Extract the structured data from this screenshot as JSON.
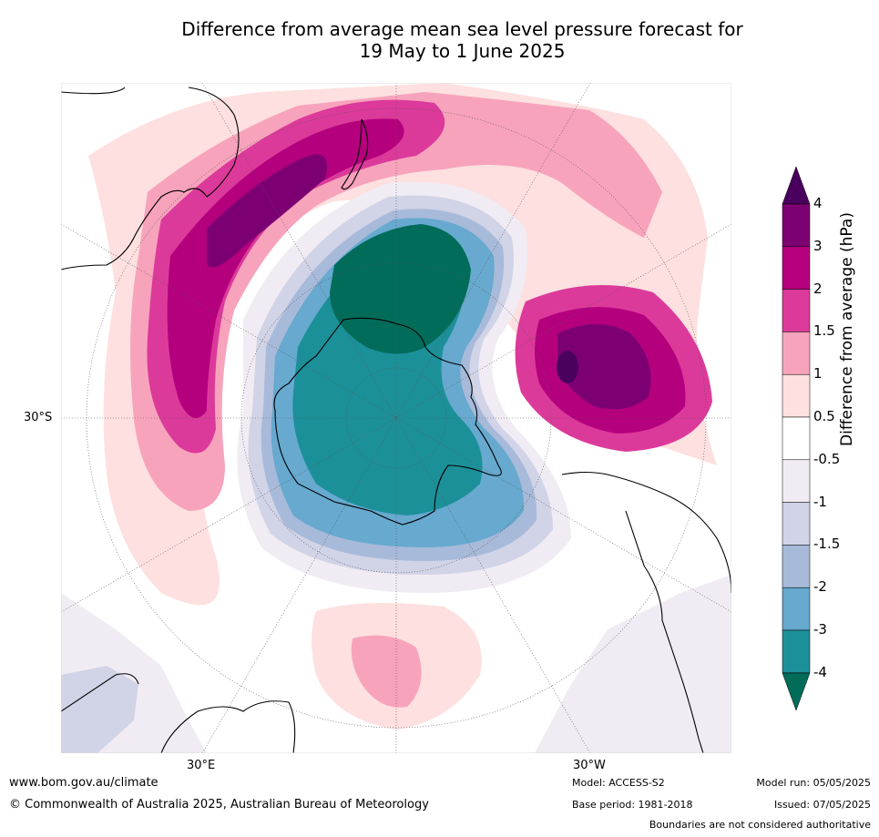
{
  "title": {
    "line1": "Difference from average mean sea level pressure forecast for",
    "line2": "19 May to 1 June 2025"
  },
  "axis_labels": {
    "lat": "30°S",
    "lon_east": "30°E",
    "lon_west": "30°W"
  },
  "colorbar": {
    "label": "Difference from average (hPa)",
    "ticks": [
      "4",
      "3",
      "2",
      "1.5",
      "1",
      "0.5",
      "-0.5",
      "-1",
      "-1.5",
      "-2",
      "-3",
      "-4"
    ],
    "colors": [
      "#4a005e",
      "#7d0073",
      "#b5007e",
      "#dc3a9a",
      "#f8a3bc",
      "#fde0df",
      "#ffffff",
      "#f1ecf3",
      "#d1d3e7",
      "#a8bad9",
      "#67a9cf",
      "#1c9099",
      "#016c59"
    ]
  },
  "footer": {
    "website": "www.bom.gov.au/climate",
    "copyright": "© Commonwealth of Australia 2025, Australian Bureau of Meteorology",
    "model": "Model: ACCESS-S2",
    "base_period": "Base period: 1981-2018",
    "model_run": "Model run: 05/05/2025",
    "issued": "Issued: 07/05/2025",
    "disclaimer": "Boundaries are not considered authoritative"
  }
}
